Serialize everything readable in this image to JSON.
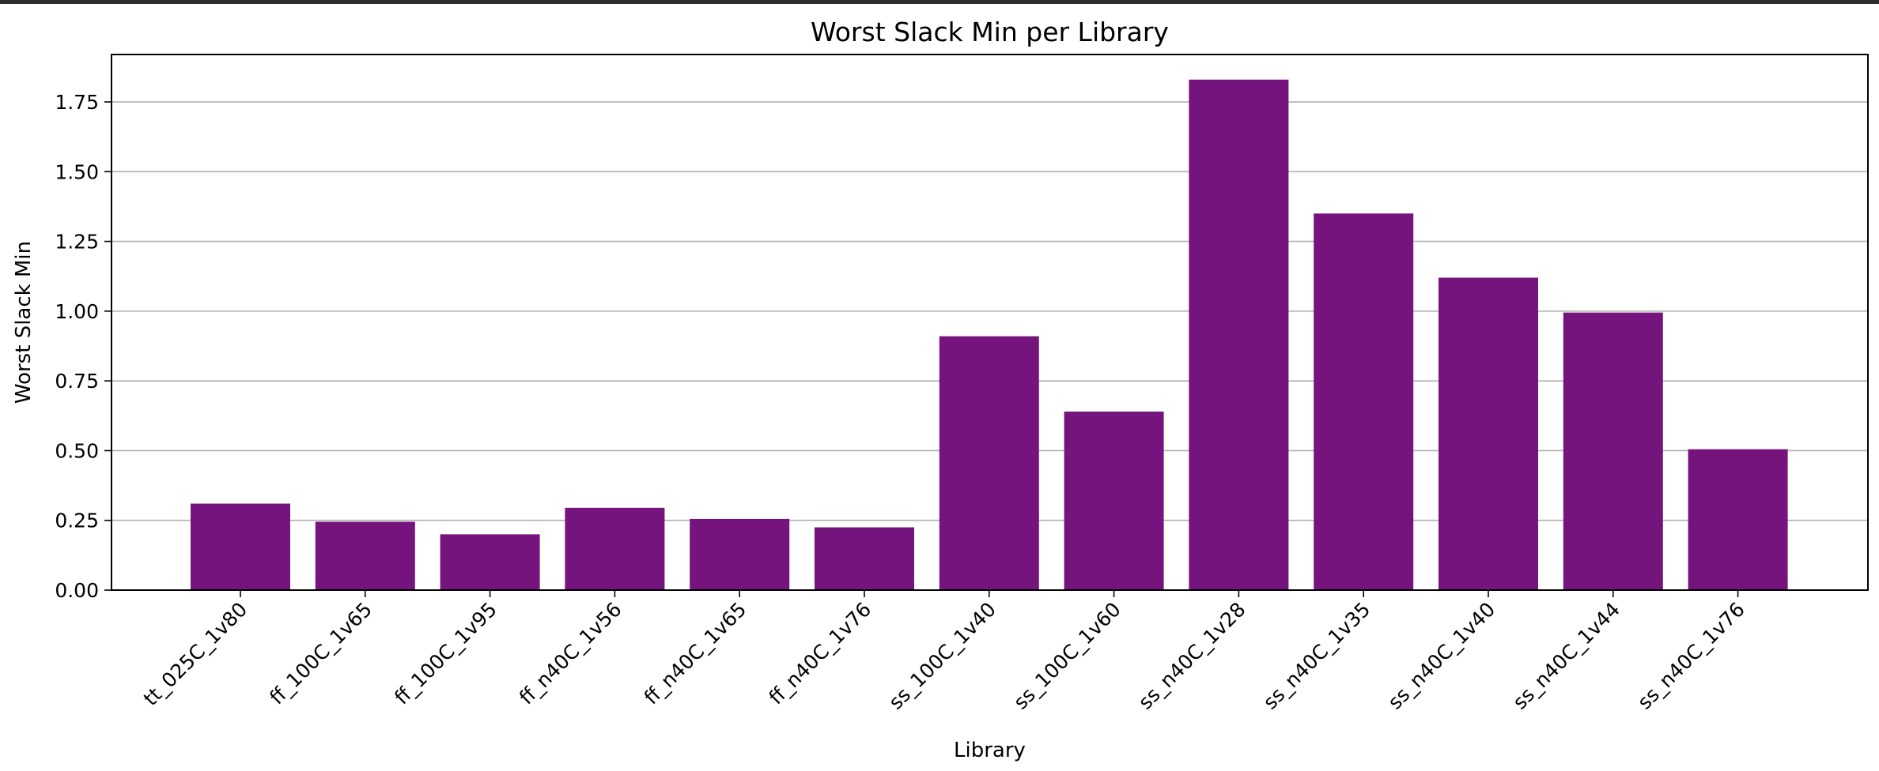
{
  "chart_data": {
    "type": "bar",
    "title": "Worst Slack Min per Library",
    "xlabel": "Library",
    "ylabel": "Worst Slack Min",
    "categories": [
      "tt_025C_1v80",
      "ff_100C_1v65",
      "ff_100C_1v95",
      "ff_n40C_1v56",
      "ff_n40C_1v65",
      "ff_n40C_1v76",
      "ss_100C_1v40",
      "ss_100C_1v60",
      "ss_n40C_1v28",
      "ss_n40C_1v35",
      "ss_n40C_1v40",
      "ss_n40C_1v44",
      "ss_n40C_1v76"
    ],
    "values": [
      0.31,
      0.245,
      0.2,
      0.295,
      0.255,
      0.225,
      0.91,
      0.64,
      1.83,
      1.35,
      1.12,
      0.995,
      0.505
    ],
    "ylim": [
      0,
      1.92
    ],
    "yticks": [
      "0.00",
      "0.25",
      "0.50",
      "0.75",
      "1.00",
      "1.25",
      "1.50",
      "1.75"
    ],
    "grid": "y",
    "bar_color": "#75147c",
    "gridline_color": "#b0b0b0",
    "frame_color": "#000000"
  }
}
